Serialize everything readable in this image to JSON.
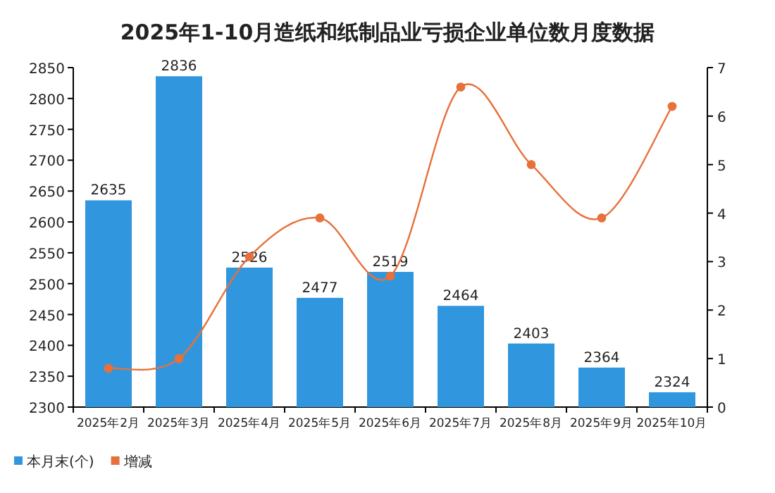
{
  "chart_data": {
    "type": "bar",
    "title": "2025年1-10月造纸和纸制品业亏损企业单位数月度数据",
    "categories": [
      "2025年2月",
      "2025年3月",
      "2025年4月",
      "2025年5月",
      "2025年6月",
      "2025年7月",
      "2025年8月",
      "2025年9月",
      "2025年10月"
    ],
    "series": [
      {
        "name": "本月末(个)",
        "color": "#3097de",
        "values": [
          2635,
          2836,
          2526,
          2477,
          2519,
          2464,
          2403,
          2364,
          2324
        ],
        "value_labels": [
          "2635",
          "2836",
          "2526",
          "2477",
          "2519",
          "2464",
          "2403",
          "2364",
          "2324"
        ]
      },
      {
        "name": "增减",
        "type": "line",
        "axis": "y2",
        "color": "#e8703a",
        "marker": "circle",
        "values": [
          0.8,
          1.0,
          3.1,
          3.9,
          2.7,
          6.6,
          5.0,
          3.9,
          6.2
        ]
      }
    ],
    "ylim": [
      2300,
      2850
    ],
    "yticks": [
      2300,
      2350,
      2400,
      2450,
      2500,
      2550,
      2600,
      2650,
      2700,
      2750,
      2800,
      2850
    ],
    "y2lim": [
      0,
      7
    ],
    "y2ticks": [
      0,
      1,
      2,
      3,
      4,
      5,
      6,
      7
    ],
    "legend": "bottom left"
  }
}
